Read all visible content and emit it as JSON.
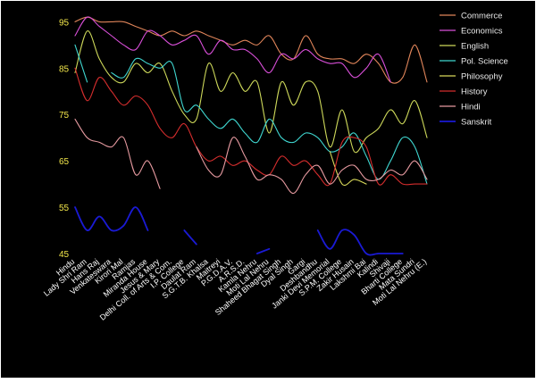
{
  "colors": {
    "background": "#000000",
    "frame": "#ffffff",
    "ytick": "#f2e64a",
    "xtick": "#ffffff",
    "legend_text": "#e8e8e8"
  },
  "chart_data": {
    "type": "line",
    "title": "",
    "xlabel": "",
    "ylabel": "",
    "ylim": [
      45,
      97
    ],
    "yticks": [
      45,
      55,
      65,
      75,
      85,
      95
    ],
    "grid": false,
    "legend": "right",
    "categories": [
      "Hindu",
      "Lady Shri Ram",
      "Hans Raj",
      "Venkateswara",
      "Kirori Mal",
      "Ramjas",
      "Miranda House",
      "Jesus & Mary",
      "Delhi Coll. of Arts & Com.",
      "I.P. College",
      "Daulat Ram",
      "S.G.T.B. Khalsa",
      "Maitreyi",
      "P.G.D.A.V.",
      "A.R.S.D.",
      "Kamla Nehru",
      "Moti Lal Nehru",
      "Shaheed Bhagat Singh",
      "Dyal Singh",
      "Gargi",
      "Deshbandhu",
      "Janki Devi Memorial",
      "S.P.M. College",
      "Zakir Husain",
      "Lakshmi Bai",
      "Kalindi",
      "Shivaji",
      "Bharti College",
      "Mata Sundri",
      "Moti Lal Nehru (E.)"
    ],
    "series": [
      {
        "name": "Commerce",
        "color": "#e0855a",
        "values": [
          95,
          96,
          95,
          95,
          95,
          94,
          93,
          92,
          93,
          92,
          93,
          92,
          91,
          90,
          91,
          90,
          92,
          88,
          87,
          92,
          88,
          87,
          87,
          86,
          88,
          86,
          82,
          83,
          90,
          82
        ]
      },
      {
        "name": "Economics",
        "color": "#d94fd9",
        "values": [
          92,
          96,
          94,
          92,
          90,
          89,
          93,
          92,
          90,
          91,
          92,
          88,
          91,
          89,
          89,
          87,
          84,
          88,
          87,
          89,
          87,
          86,
          86,
          83,
          85,
          88,
          82,
          null,
          null,
          null
        ]
      },
      {
        "name": "English",
        "color": "#cdd85a",
        "values": [
          84,
          93,
          87,
          83,
          82,
          86,
          84,
          86,
          80,
          75,
          74,
          86,
          80,
          84,
          80,
          82,
          71,
          82,
          77,
          82,
          80,
          68,
          76,
          67,
          70,
          72,
          76,
          73,
          78,
          70
        ]
      },
      {
        "name": "Pol. Science",
        "color": "#3fd6d0",
        "values": [
          90,
          82,
          null,
          84,
          83,
          87,
          86,
          85,
          86,
          76,
          77,
          74,
          72,
          74,
          71,
          69,
          74,
          70,
          69,
          71,
          70,
          67,
          68,
          71,
          66,
          61,
          65,
          70,
          68,
          60
        ]
      },
      {
        "name": "Philosophy",
        "color": "#d8d85a",
        "values": [
          null,
          null,
          null,
          null,
          null,
          null,
          null,
          null,
          null,
          null,
          71,
          null,
          null,
          null,
          null,
          null,
          null,
          null,
          null,
          null,
          null,
          67,
          60,
          61,
          60,
          null,
          null,
          null,
          null,
          null
        ]
      },
      {
        "name": "History",
        "color": "#d42d2d",
        "values": [
          85,
          78,
          83,
          80,
          77,
          79,
          77,
          72,
          70,
          73,
          68,
          65,
          66,
          64,
          65,
          63,
          62,
          66,
          64,
          65,
          62,
          60,
          69,
          70,
          68,
          60,
          62,
          60,
          60,
          60
        ]
      },
      {
        "name": "Hindi",
        "color": "#e69aa0",
        "values": [
          74,
          70,
          69,
          68,
          70,
          62,
          65,
          59,
          null,
          null,
          68,
          63,
          62,
          70,
          66,
          61,
          62,
          61,
          58,
          62,
          64,
          60,
          63,
          64,
          61,
          61,
          63,
          62,
          65,
          61
        ]
      },
      {
        "name": "Sanskrit",
        "color": "#1a1ad4",
        "values": [
          55,
          50,
          53,
          50,
          51,
          55,
          50,
          null,
          null,
          50,
          47,
          null,
          null,
          55,
          null,
          45,
          46,
          null,
          null,
          null,
          50,
          46,
          50,
          49,
          45,
          45,
          45,
          45,
          null,
          null
        ]
      }
    ]
  }
}
